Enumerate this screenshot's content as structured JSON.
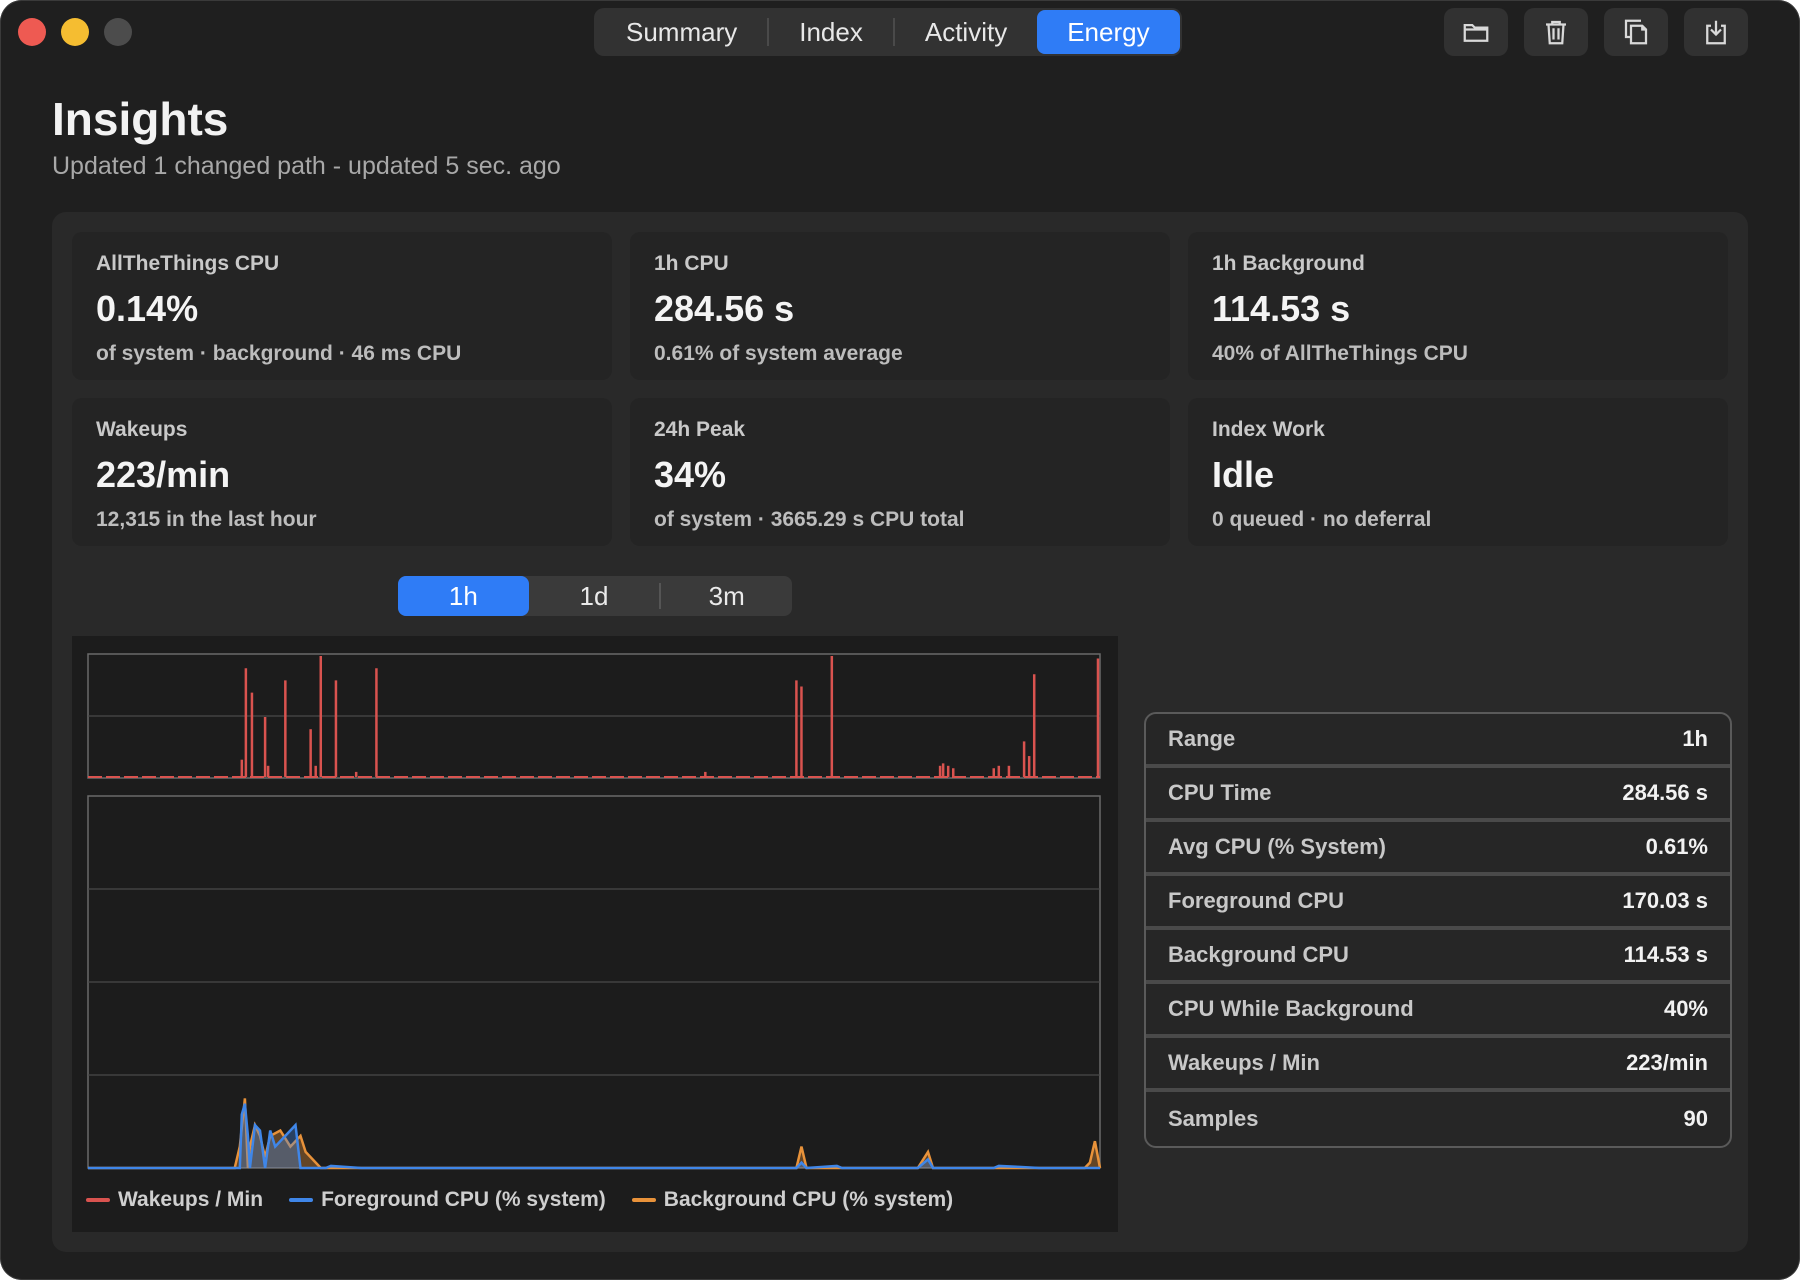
{
  "tabs": [
    {
      "label": "Summary",
      "active": false
    },
    {
      "label": "Index",
      "active": false
    },
    {
      "label": "Activity",
      "active": false
    },
    {
      "label": "Energy",
      "active": true
    }
  ],
  "toolbar": {
    "icons": [
      "folder-icon",
      "trash-icon",
      "copy-icon",
      "export-icon"
    ]
  },
  "header": {
    "title": "Insights",
    "subtitle": "Updated 1 changed path - updated 5 sec. ago"
  },
  "cards": [
    {
      "label": "AllTheThings CPU",
      "value": "0.14%",
      "sub": "of system · background · 46 ms CPU"
    },
    {
      "label": "1h CPU",
      "value": "284.56 s",
      "sub": "0.61% of system average"
    },
    {
      "label": "1h Background",
      "value": "114.53 s",
      "sub": "40% of AllTheThings CPU"
    },
    {
      "label": "Wakeups",
      "value": "223/min",
      "sub": "12,315 in the last hour"
    },
    {
      "label": "24h Peak",
      "value": "34%",
      "sub": "of system · 3665.29 s CPU total"
    },
    {
      "label": "Index Work",
      "value": "Idle",
      "sub": "0 queued · no deferral"
    }
  ],
  "range": {
    "options": [
      "1h",
      "1d",
      "3m"
    ],
    "selected": "1h"
  },
  "legend": [
    {
      "label": "Wakeups / Min",
      "color": "#d9534f"
    },
    {
      "label": "Foreground CPU (% system)",
      "color": "#3f86e8"
    },
    {
      "label": "Background CPU (% system)",
      "color": "#e8923a"
    }
  ],
  "stats": [
    {
      "key": "Range",
      "value": "1h"
    },
    {
      "key": "CPU Time",
      "value": "284.56 s"
    },
    {
      "key": "Avg CPU (% System)",
      "value": "0.61%"
    },
    {
      "key": "Foreground CPU",
      "value": "170.03 s"
    },
    {
      "key": "Background CPU",
      "value": "114.53 s"
    },
    {
      "key": "CPU While Background",
      "value": "40%"
    },
    {
      "key": "Wakeups / Min",
      "value": "223/min"
    },
    {
      "key": "Samples",
      "value": "90"
    }
  ],
  "chart_data": [
    {
      "type": "bar",
      "series": [
        {
          "name": "Wakeups / Min",
          "color": "#d9534f"
        }
      ],
      "x": [
        0.0,
        0.152,
        0.156,
        0.162,
        0.175,
        0.178,
        0.195,
        0.22,
        0.225,
        0.23,
        0.245,
        0.265,
        0.285,
        0.61,
        0.7,
        0.705,
        0.735,
        0.842,
        0.845,
        0.85,
        0.855,
        0.895,
        0.9,
        0.91,
        0.925,
        0.93,
        0.935,
        0.998
      ],
      "values": [
        0.0,
        0.15,
        0.9,
        0.7,
        0.5,
        0.1,
        0.8,
        0.4,
        0.1,
        1.0,
        0.8,
        0.05,
        0.9,
        0.05,
        0.8,
        0.75,
        1.0,
        0.1,
        0.12,
        0.1,
        0.08,
        0.08,
        0.1,
        0.1,
        0.3,
        0.18,
        0.85,
        0.98
      ],
      "ylim": [
        0,
        1
      ]
    },
    {
      "type": "area",
      "series": [
        {
          "name": "Foreground CPU (% system)",
          "color": "#3f86e8",
          "x": [
            0.0,
            0.15,
            0.152,
            0.155,
            0.158,
            0.16,
            0.165,
            0.17,
            0.175,
            0.18,
            0.185,
            0.195,
            0.2,
            0.205,
            0.21,
            0.225,
            0.228,
            0.235,
            0.24,
            0.27,
            0.7,
            0.705,
            0.71,
            0.74,
            0.745,
            0.82,
            0.83,
            0.835,
            0.85,
            0.895,
            0.9,
            0.92,
            0.94,
            0.995,
            1.0
          ],
          "values": [
            0.0,
            0.0,
            0.5,
            0.6,
            0.3,
            0.0,
            0.4,
            0.35,
            0.0,
            0.35,
            0.2,
            0.3,
            0.35,
            0.4,
            0.0,
            0.0,
            0.0,
            0.0,
            0.02,
            0.0,
            0.0,
            0.05,
            0.0,
            0.02,
            0.0,
            0.0,
            0.08,
            0.0,
            0.0,
            0.0,
            0.02,
            0.01,
            0.0,
            0.0,
            0.0
          ]
        },
        {
          "name": "Background CPU (% system)",
          "color": "#e8923a",
          "x": [
            0.0,
            0.145,
            0.15,
            0.155,
            0.158,
            0.16,
            0.165,
            0.17,
            0.175,
            0.18,
            0.19,
            0.2,
            0.21,
            0.215,
            0.23,
            0.7,
            0.705,
            0.71,
            0.82,
            0.83,
            0.835,
            0.985,
            0.99,
            0.995,
            1.0
          ],
          "values": [
            0.0,
            0.0,
            0.2,
            0.65,
            0.0,
            0.2,
            0.4,
            0.3,
            0.1,
            0.3,
            0.35,
            0.2,
            0.3,
            0.15,
            0.0,
            0.0,
            0.2,
            0.0,
            0.0,
            0.15,
            0.0,
            0.0,
            0.05,
            0.25,
            0.0
          ],
          "ylim": [
            0,
            1
          ]
        }
      ]
    }
  ]
}
